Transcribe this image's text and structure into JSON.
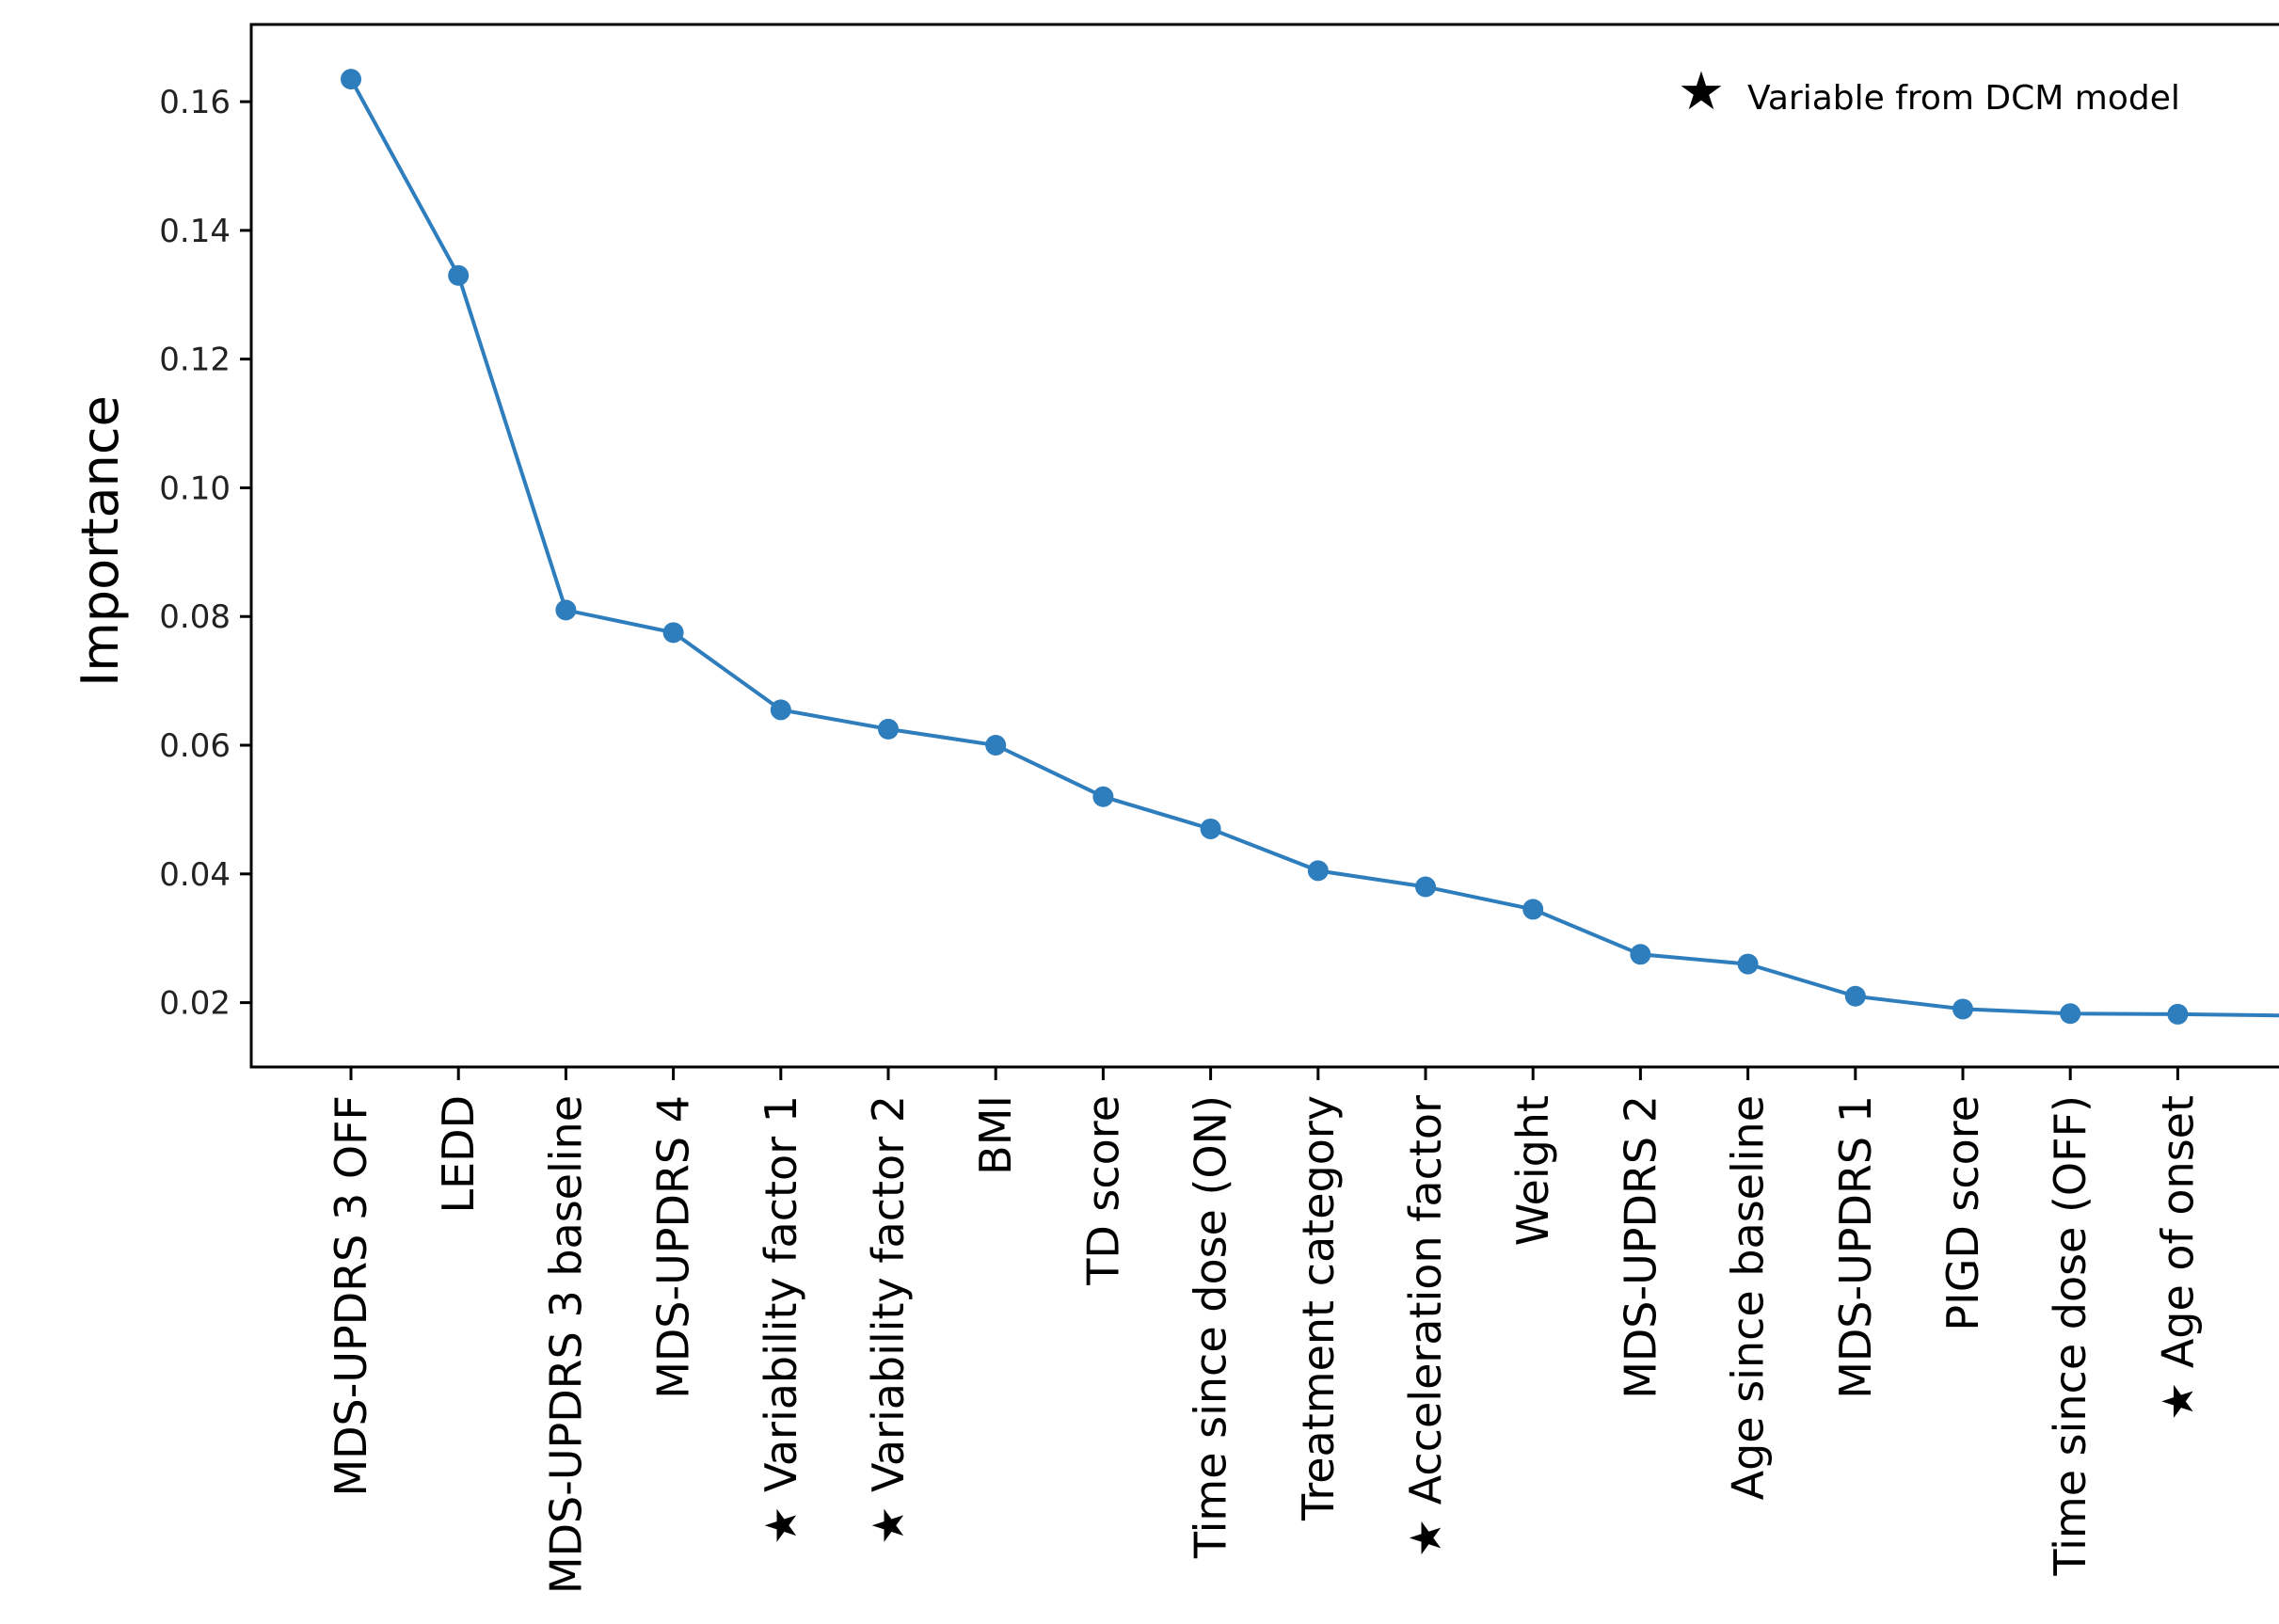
{
  "chart_data": {
    "type": "line",
    "title": "",
    "xlabel": "",
    "ylabel": "Importance",
    "ylim": [
      0.01,
      0.172
    ],
    "yticks": [
      0.02,
      0.04,
      0.06,
      0.08,
      0.1,
      0.12,
      0.14,
      0.16
    ],
    "ytick_labels": [
      "0.02",
      "0.04",
      "0.06",
      "0.08",
      "0.10",
      "0.12",
      "0.14",
      "0.16"
    ],
    "categories": [
      {
        "label": "MDS-UPDRS 3 OFF",
        "star": false
      },
      {
        "label": "LEDD",
        "star": false
      },
      {
        "label": "MDS-UPDRS 3 baseline",
        "star": false
      },
      {
        "label": "MDS-UPDRS 4",
        "star": false
      },
      {
        "label": "Variability factor 1",
        "star": true
      },
      {
        "label": "Variability factor 2",
        "star": true
      },
      {
        "label": "BMI",
        "star": false
      },
      {
        "label": "TD score",
        "star": false
      },
      {
        "label": "Time since dose (ON)",
        "star": false
      },
      {
        "label": "Treatment category",
        "star": false
      },
      {
        "label": "Acceleration factor",
        "star": true
      },
      {
        "label": "Weight",
        "star": false
      },
      {
        "label": "MDS-UPDRS 2",
        "star": false
      },
      {
        "label": "Age since baseline",
        "star": false
      },
      {
        "label": "MDS-UPDRS 1",
        "star": false
      },
      {
        "label": "PIGD score",
        "star": false
      },
      {
        "label": "Time since dose (OFF)",
        "star": false
      },
      {
        "label": "Age of onset",
        "star": true
      }
    ],
    "values": [
      0.1635,
      0.133,
      0.081,
      0.0775,
      0.0655,
      0.0625,
      0.06,
      0.052,
      0.047,
      0.0405,
      0.038,
      0.0345,
      0.0275,
      0.026,
      0.021,
      0.019,
      0.0183,
      0.0182
    ],
    "trailing_value": 0.018,
    "grid": false,
    "legend": {
      "text": "Variable from DCM model",
      "marker": "black-star",
      "placement": "top-right"
    }
  }
}
